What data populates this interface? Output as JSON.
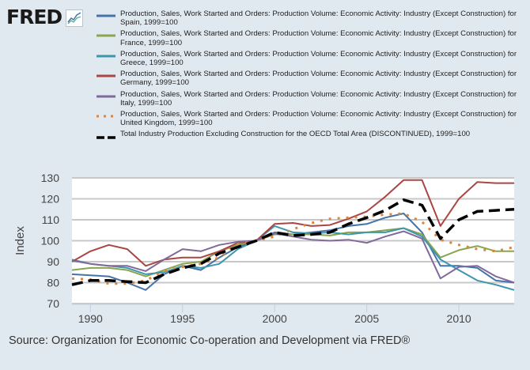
{
  "header": {
    "logo_text": "FRED",
    "logo_icon": "fred-chart-icon"
  },
  "source": "Source: Organization for Economic Co-operation and Development via FRED®",
  "chart_data": {
    "type": "line",
    "title": "",
    "xlabel": "",
    "ylabel": "Index",
    "xlim": [
      1989,
      2013
    ],
    "ylim": [
      70,
      130
    ],
    "yticks": [
      70,
      80,
      90,
      100,
      110,
      120,
      130
    ],
    "xticks": [
      1990,
      1995,
      2000,
      2005,
      2010
    ],
    "grid": true,
    "legend_position": "top",
    "x": [
      1989,
      1990,
      1991,
      1992,
      1993,
      1994,
      1995,
      1996,
      1997,
      1998,
      1999,
      2000,
      2001,
      2002,
      2003,
      2004,
      2005,
      2006,
      2007,
      2008,
      2009,
      2010,
      2011,
      2012,
      2013
    ],
    "series": [
      {
        "name": "Production, Sales, Work Started and Orders: Production Volume: Economic Activity: Industry (Except Construction) for Spain, 1999=100",
        "color": "#4572a7",
        "style": "solid",
        "values": [
          84,
          83.5,
          83,
          80,
          76.5,
          84,
          88,
          86,
          92,
          97,
          100,
          104,
          103,
          104,
          105,
          107,
          108,
          111,
          113,
          104,
          88,
          88,
          87,
          81,
          80
        ]
      },
      {
        "name": "Production, Sales, Work Started and Orders: Production Volume: Economic Activity: Industry (Except Construction) for France, 1999=100",
        "color": "#89a54e",
        "style": "solid",
        "values": [
          86,
          87,
          87,
          86,
          83,
          86,
          89,
          90,
          95,
          98,
          100,
          103,
          103,
          103,
          102.5,
          104,
          104,
          105,
          106,
          103,
          92,
          95.5,
          97.5,
          95,
          95
        ]
      },
      {
        "name": "Production, Sales, Work Started and Orders: Production Volume: Economic Activity: Industry (Except Construction) for Greece, 1999=100",
        "color": "#3d96ae",
        "style": "solid",
        "values": [
          91,
          89,
          88,
          87,
          84,
          85,
          88,
          87,
          89,
          96,
          100,
          107,
          104,
          103.5,
          104,
          103,
          104,
          104,
          106,
          102,
          91,
          86,
          81,
          79,
          76.5
        ]
      },
      {
        "name": "Production, Sales, Work Started and Orders: Production Volume: Economic Activity: Industry (Except Construction) for Germany, 1999=100",
        "color": "#aa4643",
        "style": "solid",
        "values": [
          90,
          95,
          98,
          96,
          88,
          91,
          92,
          92,
          95,
          99,
          100,
          108,
          108.5,
          107,
          107.5,
          110.5,
          114,
          121,
          129,
          129,
          107,
          120,
          128,
          127.5,
          127.5
        ]
      },
      {
        "name": "Production, Sales, Work Started and Orders: Production Volume: Economic Activity: Industry (Except Construction) for Italy, 1999=100",
        "color": "#80699b",
        "style": "solid",
        "values": [
          90.5,
          89,
          88,
          88,
          85.5,
          91,
          96,
          95,
          98,
          99.5,
          100,
          103.5,
          102,
          100.5,
          100,
          100.5,
          99,
          102,
          104.5,
          101,
          82,
          87.5,
          88,
          83,
          80
        ]
      },
      {
        "name": "Production, Sales, Work Started and Orders: Production Volume: Economic Activity: Industry (Except Construction) for United Kingdom, 1999=100",
        "color": "#db843d",
        "style": "dotted",
        "values": [
          82,
          81.5,
          79.5,
          79.5,
          81,
          85.5,
          87.5,
          89,
          92,
          98.5,
          100,
          102,
          105.5,
          108.5,
          110.5,
          111,
          111.5,
          112.5,
          113,
          109,
          100.5,
          98,
          96,
          95,
          97
        ]
      },
      {
        "name": "Total Industry Production Excluding Construction for the OECD Total Area (DISCONTINUED), 1999=100",
        "color": "#000000",
        "style": "dashed",
        "values": [
          79,
          81,
          81,
          80.5,
          80,
          84,
          87,
          89,
          94,
          97,
          100,
          104,
          102.5,
          103,
          104,
          108,
          111,
          114.5,
          119.5,
          117,
          101,
          110,
          114,
          114.5,
          115
        ]
      }
    ]
  }
}
